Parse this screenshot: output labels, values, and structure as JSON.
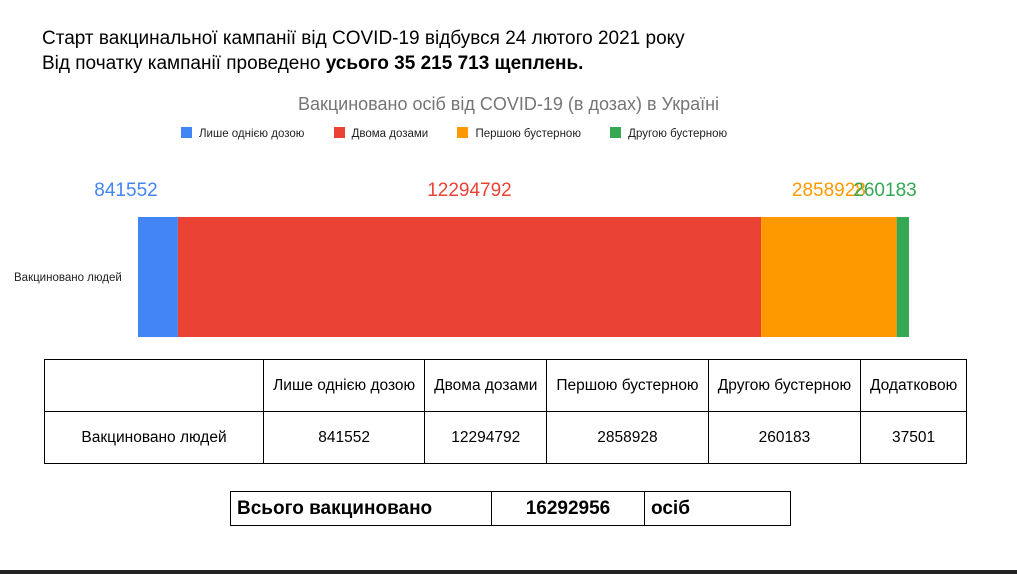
{
  "header": {
    "line1": "Старт вакцинальної кампанії від COVID-19 відбувся 24 лютого 2021 року",
    "line2_prefix": "Від початку кампанії проведено ",
    "line2_bold": "усього 35 215 713 щеплень."
  },
  "chart_data": {
    "type": "bar",
    "orientation": "horizontal",
    "stacked": true,
    "title": "Вакциновано осіб від COVID-19 (в дозах) в Україні",
    "categories": [
      "Вакциновано людей"
    ],
    "series": [
      {
        "name": "Лише однією дозою",
        "color": "#4285f4",
        "values": [
          841552
        ]
      },
      {
        "name": "Двома дозами",
        "color": "#ea4335",
        "values": [
          12294792
        ]
      },
      {
        "name": "Першою бустерною",
        "color": "#ff9900",
        "values": [
          2858928
        ]
      },
      {
        "name": "Другою бустерною",
        "color": "#34a853",
        "values": [
          260183
        ]
      }
    ],
    "legend_position": "top",
    "grid": false
  },
  "table": {
    "columns": [
      "",
      "Лише однією дозою",
      "Двома дозами",
      "Першою бустерною",
      "Другою бустерною",
      "Додатковою"
    ],
    "rows": [
      {
        "label": "Вакциновано людей",
        "values": [
          "841552",
          "12294792",
          "2858928",
          "260183",
          "37501"
        ]
      }
    ]
  },
  "total": {
    "label": "Всього вакциновано",
    "value": "16292956",
    "unit": "осіб"
  }
}
